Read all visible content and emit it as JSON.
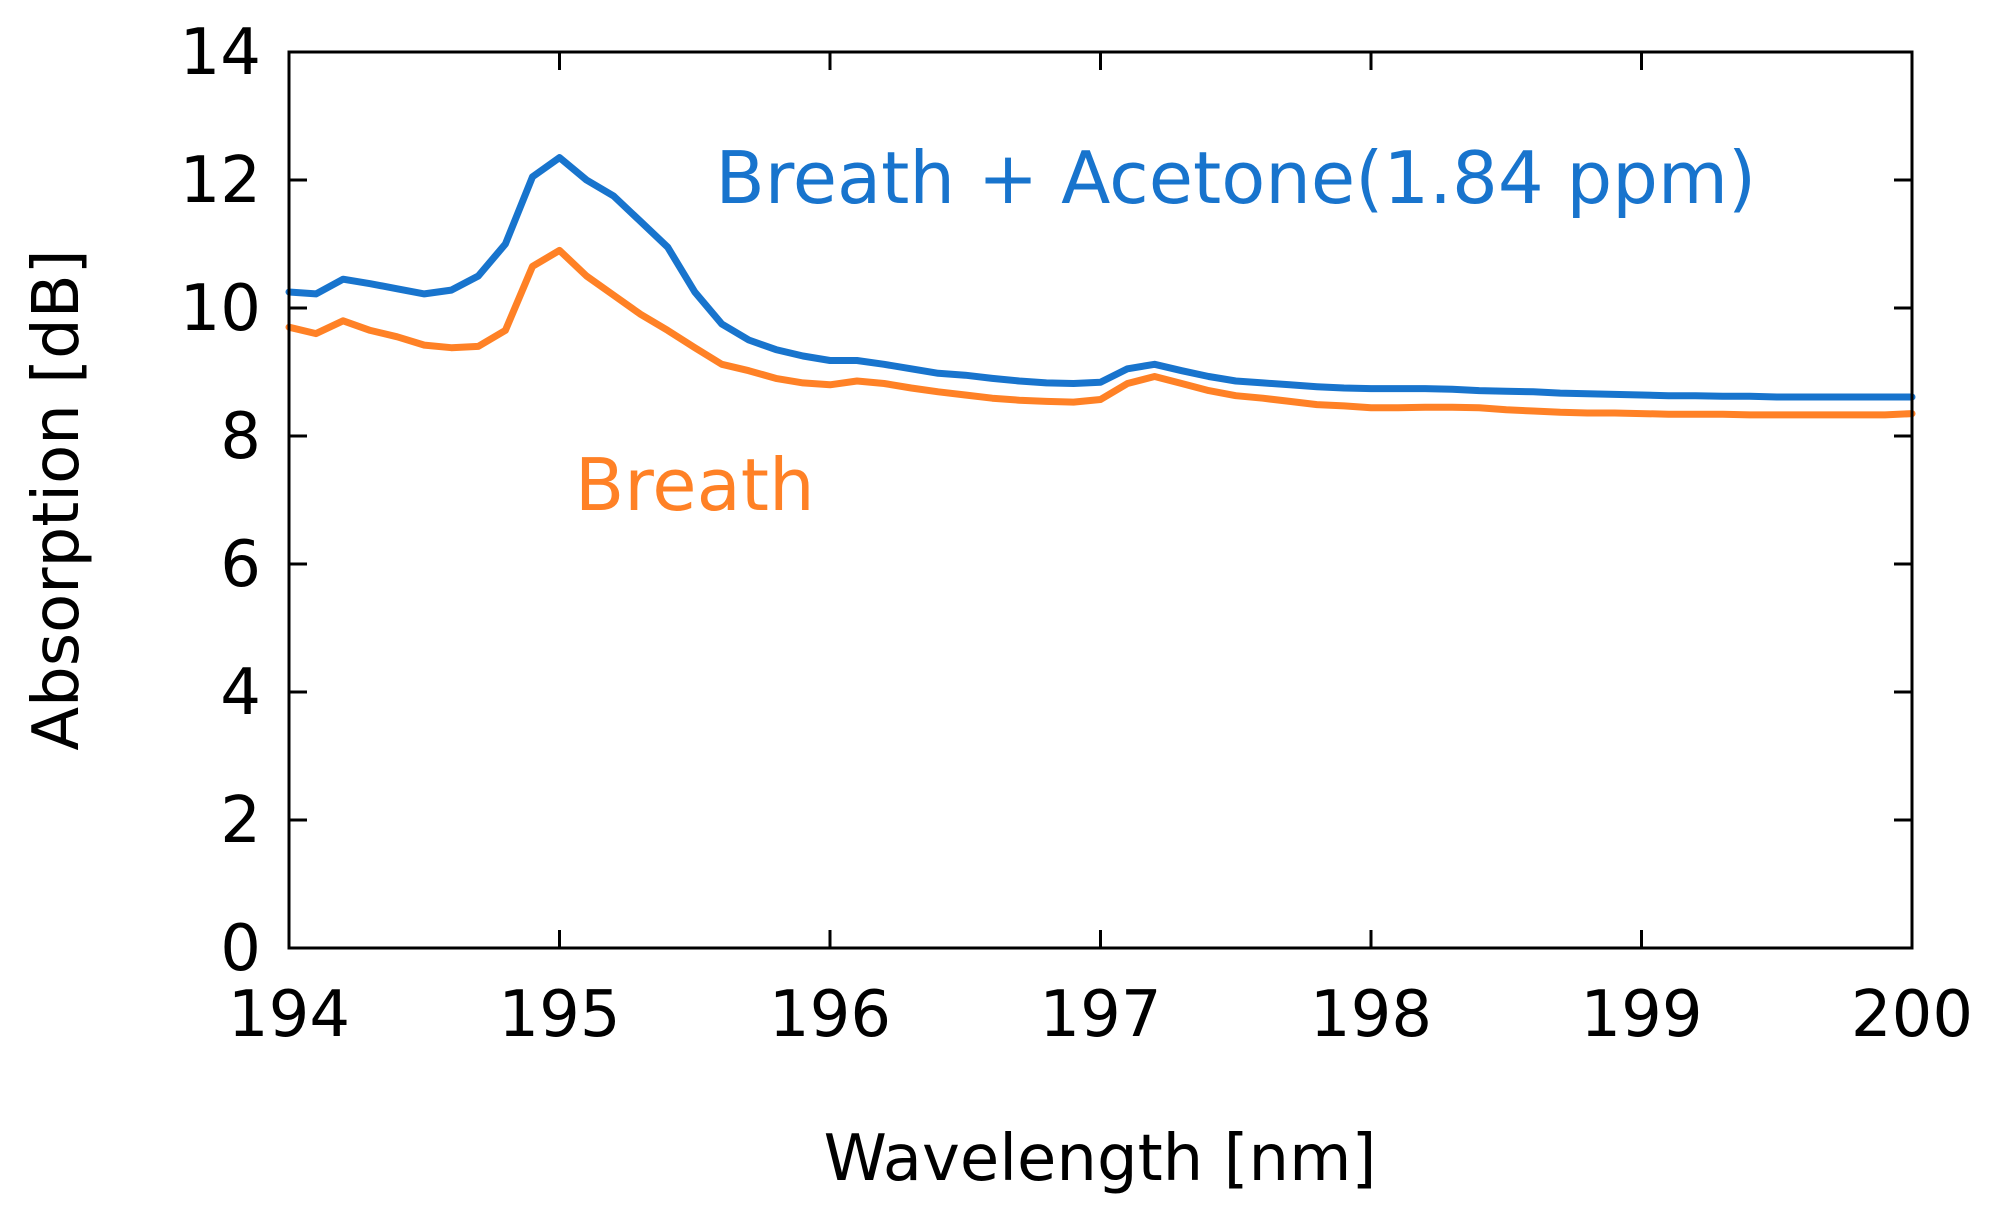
{
  "chart_data": {
    "type": "line",
    "title": "",
    "xlabel": "Wavelength [nm]",
    "ylabel": "Absorption [dB]",
    "xlim": [
      194,
      200
    ],
    "ylim": [
      0,
      14
    ],
    "xticks": [
      194,
      195,
      196,
      197,
      198,
      199,
      200
    ],
    "yticks": [
      0,
      2,
      4,
      6,
      8,
      10,
      12,
      14
    ],
    "xtick_labels": [
      "194",
      "195",
      "196",
      "197",
      "198",
      "199",
      "200"
    ],
    "ytick_labels": [
      "0",
      "2",
      "4",
      "6",
      "8",
      "10",
      "12",
      "14"
    ],
    "grid": false,
    "legend": "none",
    "series": [
      {
        "name": "Breath + Acetone(1.84 ppm)",
        "color": "#1874CD",
        "x": [
          194.0,
          194.1,
          194.2,
          194.3,
          194.4,
          194.5,
          194.6,
          194.7,
          194.8,
          194.9,
          195.0,
          195.1,
          195.2,
          195.3,
          195.4,
          195.5,
          195.6,
          195.7,
          195.8,
          195.9,
          196.0,
          196.1,
          196.2,
          196.3,
          196.4,
          196.5,
          196.6,
          196.7,
          196.8,
          196.9,
          197.0,
          197.1,
          197.2,
          197.3,
          197.4,
          197.5,
          197.6,
          197.7,
          197.8,
          197.9,
          198.0,
          198.1,
          198.2,
          198.3,
          198.4,
          198.5,
          198.6,
          198.7,
          198.8,
          198.9,
          199.0,
          199.1,
          199.2,
          199.3,
          199.4,
          199.5,
          199.6,
          199.7,
          199.8,
          199.9,
          200.0
        ],
        "values": [
          10.25,
          10.22,
          10.45,
          10.38,
          10.3,
          10.22,
          10.28,
          10.5,
          11.0,
          12.05,
          12.35,
          12.0,
          11.75,
          11.35,
          10.95,
          10.25,
          9.75,
          9.5,
          9.35,
          9.25,
          9.18,
          9.18,
          9.12,
          9.05,
          8.98,
          8.95,
          8.9,
          8.86,
          8.83,
          8.82,
          8.84,
          9.05,
          9.12,
          9.02,
          8.93,
          8.86,
          8.83,
          8.8,
          8.77,
          8.75,
          8.74,
          8.74,
          8.74,
          8.73,
          8.71,
          8.7,
          8.69,
          8.67,
          8.66,
          8.65,
          8.64,
          8.63,
          8.63,
          8.62,
          8.62,
          8.61,
          8.61,
          8.61,
          8.61,
          8.61,
          8.61
        ]
      },
      {
        "name": "Breath",
        "color": "#FF8126",
        "x": [
          194.0,
          194.1,
          194.2,
          194.3,
          194.4,
          194.5,
          194.6,
          194.7,
          194.8,
          194.9,
          195.0,
          195.1,
          195.2,
          195.3,
          195.4,
          195.5,
          195.6,
          195.7,
          195.8,
          195.9,
          196.0,
          196.1,
          196.2,
          196.3,
          196.4,
          196.5,
          196.6,
          196.7,
          196.8,
          196.9,
          197.0,
          197.1,
          197.2,
          197.3,
          197.4,
          197.5,
          197.6,
          197.7,
          197.8,
          197.9,
          198.0,
          198.1,
          198.2,
          198.3,
          198.4,
          198.5,
          198.6,
          198.7,
          198.8,
          198.9,
          199.0,
          199.1,
          199.2,
          199.3,
          199.4,
          199.5,
          199.6,
          199.7,
          199.8,
          199.9,
          200.0
        ],
        "values": [
          9.7,
          9.6,
          9.8,
          9.65,
          9.55,
          9.42,
          9.38,
          9.4,
          9.65,
          10.65,
          10.9,
          10.5,
          10.2,
          9.9,
          9.65,
          9.38,
          9.12,
          9.02,
          8.9,
          8.83,
          8.8,
          8.86,
          8.82,
          8.75,
          8.69,
          8.64,
          8.59,
          8.56,
          8.54,
          8.53,
          8.57,
          8.82,
          8.93,
          8.82,
          8.71,
          8.63,
          8.59,
          8.54,
          8.49,
          8.47,
          8.44,
          8.44,
          8.45,
          8.45,
          8.44,
          8.41,
          8.39,
          8.37,
          8.36,
          8.36,
          8.35,
          8.34,
          8.34,
          8.34,
          8.33,
          8.33,
          8.33,
          8.33,
          8.33,
          8.33,
          8.35
        ]
      }
    ],
    "annotations": [
      {
        "series": "Breath + Acetone(1.84 ppm)",
        "text": "Breath + Acetone(1.84 ppm)",
        "color": "#1874CD",
        "at": [
          197.5,
          12.05
        ]
      },
      {
        "series": "Breath",
        "text": "Breath",
        "color": "#FF8126",
        "at": [
          195.5,
          7.25
        ]
      }
    ]
  }
}
